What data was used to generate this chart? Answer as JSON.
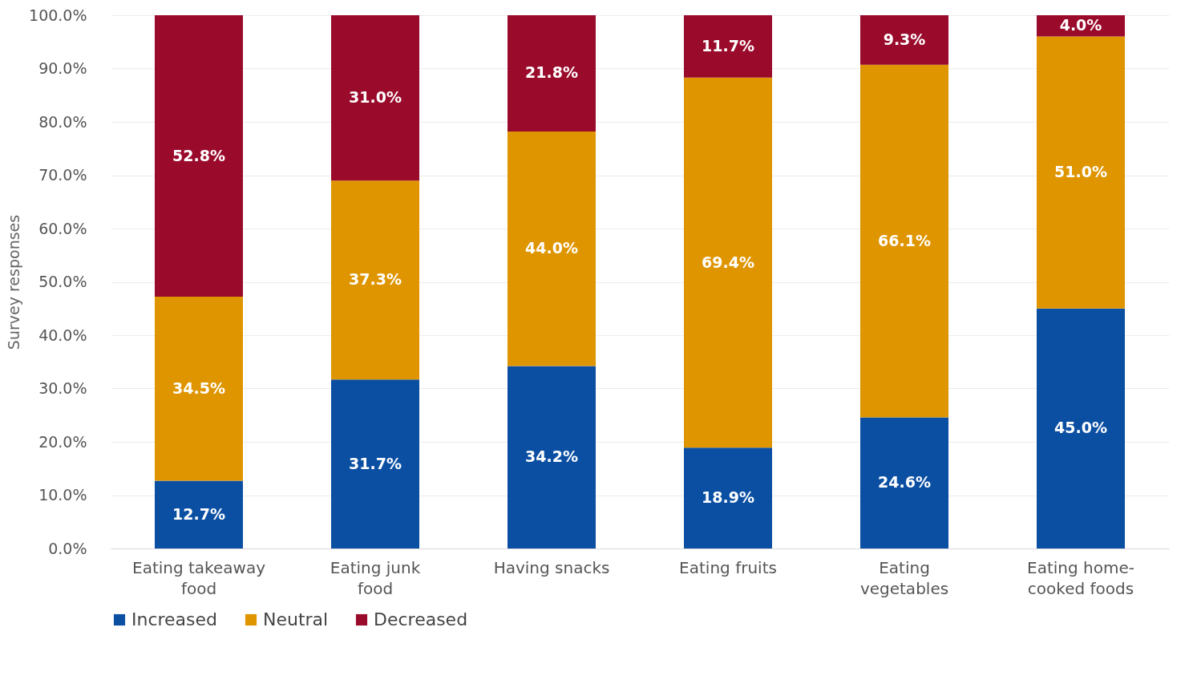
{
  "chart_data": {
    "type": "bar",
    "stacked": true,
    "ylabel": "Survey responses",
    "categories": [
      "Eating takeaway food",
      "Eating junk food",
      "Having snacks",
      "Eating fruits",
      "Eating vegetables",
      "Eating home-cooked foods"
    ],
    "series": [
      {
        "name": "Increased",
        "color": "#0b4fa3",
        "values": [
          12.7,
          31.7,
          34.2,
          18.9,
          24.6,
          45.0
        ],
        "value_labels": [
          "12.7%",
          "31.7%",
          "34.2%",
          "18.9%",
          "24.6%",
          "45.0%"
        ]
      },
      {
        "name": "Neutral",
        "color": "#df9500",
        "values": [
          34.5,
          37.3,
          44.0,
          69.4,
          66.1,
          51.0
        ],
        "value_labels": [
          "34.5%",
          "37.3%",
          "44.0%",
          "69.4%",
          "66.1%",
          "51.0%"
        ]
      },
      {
        "name": "Decreased",
        "color": "#9a0a2b",
        "values": [
          52.8,
          31.0,
          21.8,
          11.7,
          9.3,
          4.0
        ],
        "value_labels": [
          "52.8%",
          "31.0%",
          "21.8%",
          "11.7%",
          "9.3%",
          "4.0%"
        ]
      }
    ],
    "ylim": [
      0,
      100
    ],
    "yticks": [
      {
        "value": 0,
        "label": "0.0%"
      },
      {
        "value": 10,
        "label": "10.0%"
      },
      {
        "value": 20,
        "label": "20.0%"
      },
      {
        "value": 30,
        "label": "30.0%"
      },
      {
        "value": 40,
        "label": "40.0%"
      },
      {
        "value": 50,
        "label": "50.0%"
      },
      {
        "value": 60,
        "label": "60.0%"
      },
      {
        "value": 70,
        "label": "70.0%"
      },
      {
        "value": 80,
        "label": "80.0%"
      },
      {
        "value": 90,
        "label": "90.0%"
      },
      {
        "value": 100,
        "label": "100.0%"
      }
    ],
    "grid": "y",
    "legend": "bottom"
  }
}
